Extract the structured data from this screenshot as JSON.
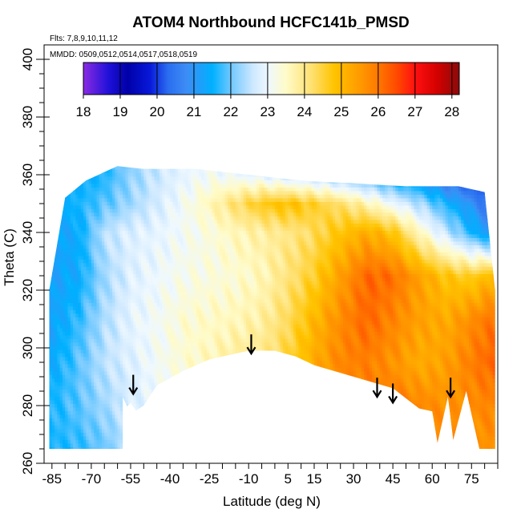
{
  "chart_data": {
    "type": "heatmap",
    "title": "ATOM4 Northbound HCFC141b_PMSD",
    "subtitle_flights": "Flts: 7,8,9,10,11,12",
    "subtitle_dates": "MMDD: 0509,0512,0514,0517,0518,0519",
    "xlabel": "Latitude (deg N)",
    "ylabel": "Theta (C)",
    "xlim": [
      -88,
      85
    ],
    "ylim": [
      260,
      405
    ],
    "x_ticks": [
      -85,
      -70,
      -55,
      -40,
      -25,
      -10,
      5,
      15,
      30,
      45,
      60,
      75
    ],
    "y_ticks": [
      260,
      280,
      300,
      320,
      340,
      360,
      380,
      400
    ],
    "colorbar": {
      "range": [
        18,
        28.2
      ],
      "ticks": [
        18,
        19,
        20,
        21,
        22,
        23,
        24,
        25,
        26,
        27,
        28
      ],
      "stops": [
        {
          "v": 18.0,
          "c": "#8a2be2"
        },
        {
          "v": 18.7,
          "c": "#1e10d8"
        },
        {
          "v": 19.2,
          "c": "#0000a8"
        },
        {
          "v": 19.8,
          "c": "#0818d8"
        },
        {
          "v": 20.3,
          "c": "#2a6ef0"
        },
        {
          "v": 20.8,
          "c": "#3d8df5"
        },
        {
          "v": 21.5,
          "c": "#00b0ff"
        },
        {
          "v": 22.0,
          "c": "#70c8ff"
        },
        {
          "v": 22.6,
          "c": "#cde8ff"
        },
        {
          "v": 23.0,
          "c": "#eef8ff"
        },
        {
          "v": 23.5,
          "c": "#fffbc8"
        },
        {
          "v": 24.2,
          "c": "#ffe070"
        },
        {
          "v": 24.8,
          "c": "#ffc400"
        },
        {
          "v": 25.5,
          "c": "#ff9a00"
        },
        {
          "v": 26.0,
          "c": "#ff7800"
        },
        {
          "v": 26.5,
          "c": "#ff4a00"
        },
        {
          "v": 27.0,
          "c": "#ff1010"
        },
        {
          "v": 27.6,
          "c": "#d40000"
        },
        {
          "v": 28.2,
          "c": "#8a0a0a"
        }
      ]
    },
    "field_anchors_lat": [
      -85,
      -75,
      -65,
      -55,
      -45,
      -35,
      -25,
      -15,
      -5,
      5,
      15,
      25,
      35,
      45,
      55,
      65,
      75,
      82
    ],
    "field_anchors_theta": [
      265,
      280,
      295,
      310,
      325,
      340,
      350,
      360
    ],
    "field_values": [
      [
        21.6,
        21.7,
        22.0,
        22.5,
        22.8,
        23.0,
        23.3,
        23.6,
        23.8,
        24.2,
        24.8,
        25.3,
        25.6,
        25.8,
        25.8,
        25.7,
        25.6,
        25.6
      ],
      [
        21.6,
        21.9,
        22.3,
        22.7,
        23.0,
        23.2,
        23.5,
        23.8,
        24.0,
        24.4,
        25.0,
        25.6,
        25.9,
        26.0,
        25.8,
        25.6,
        25.7,
        25.8
      ],
      [
        21.4,
        21.9,
        22.5,
        22.8,
        23.1,
        23.4,
        23.6,
        23.9,
        24.0,
        24.5,
        25.2,
        25.8,
        25.9,
        25.6,
        25.2,
        25.4,
        25.9,
        26.2
      ],
      [
        21.2,
        21.7,
        22.4,
        22.9,
        23.1,
        23.4,
        23.5,
        23.6,
        23.8,
        24.3,
        25.0,
        25.7,
        26.2,
        25.8,
        25.4,
        25.2,
        25.7,
        26.0
      ],
      [
        21.2,
        21.4,
        22.3,
        22.8,
        23.0,
        23.2,
        23.3,
        23.4,
        23.6,
        24.1,
        24.6,
        25.4,
        26.2,
        26.1,
        25.4,
        24.8,
        24.6,
        25.0
      ],
      [
        21.2,
        21.4,
        22.5,
        22.8,
        22.9,
        23.1,
        23.3,
        23.6,
        23.8,
        24.0,
        24.3,
        24.8,
        25.2,
        24.8,
        23.6,
        22.6,
        21.6,
        21.0
      ],
      [
        21.4,
        21.6,
        21.9,
        22.3,
        22.7,
        23.1,
        23.6,
        24.2,
        24.7,
        24.9,
        24.6,
        24.2,
        23.7,
        23.0,
        22.4,
        21.6,
        20.9,
        20.3
      ],
      [
        21.3,
        21.4,
        21.6,
        22.2,
        22.6,
        22.9,
        23.1,
        23.0,
        22.8,
        22.5,
        22.3,
        22.0,
        21.6,
        21.2,
        20.8,
        20.2,
        19.7,
        19.6
      ]
    ],
    "top_boundary": [
      [
        -86,
        320
      ],
      [
        -80,
        352
      ],
      [
        -72,
        358
      ],
      [
        -60,
        363
      ],
      [
        -50,
        362
      ],
      [
        -30,
        362
      ],
      [
        -10,
        360
      ],
      [
        10,
        358
      ],
      [
        30,
        357
      ],
      [
        50,
        356
      ],
      [
        70,
        356
      ],
      [
        80,
        354
      ],
      [
        84,
        320
      ]
    ],
    "bottom_boundary": [
      [
        84,
        265
      ],
      [
        78,
        265
      ],
      [
        73,
        285
      ],
      [
        68,
        268
      ],
      [
        66,
        283
      ],
      [
        65,
        272
      ],
      [
        62,
        267
      ],
      [
        60,
        278
      ],
      [
        55,
        279
      ],
      [
        45,
        286
      ],
      [
        40,
        286
      ],
      [
        30,
        290
      ],
      [
        20,
        292
      ],
      [
        15,
        294
      ],
      [
        8,
        297
      ],
      [
        0,
        299
      ],
      [
        -10,
        299
      ],
      [
        -25,
        296
      ],
      [
        -35,
        292
      ],
      [
        -45,
        287
      ],
      [
        -50,
        280
      ],
      [
        -52,
        277
      ],
      [
        -55,
        281
      ],
      [
        -57,
        279
      ],
      [
        -58,
        265
      ],
      [
        -86,
        265
      ]
    ],
    "missing_region": [
      [
        -10,
        299
      ],
      [
        -20,
        297
      ],
      [
        -32,
        293
      ],
      [
        -42,
        288
      ],
      [
        -50,
        280
      ],
      [
        -55,
        277
      ],
      [
        -58,
        283
      ],
      [
        -58,
        265
      ],
      [
        84,
        265
      ],
      [
        84,
        264
      ],
      [
        78,
        264
      ],
      [
        73,
        285
      ],
      [
        68,
        268
      ],
      [
        66,
        283
      ],
      [
        62,
        267
      ],
      [
        60,
        278
      ],
      [
        55,
        279
      ],
      [
        45,
        286
      ],
      [
        30,
        290
      ],
      [
        15,
        294
      ],
      [
        0,
        299
      ]
    ],
    "arrows_lat": [
      -54,
      -9,
      39,
      45,
      67
    ],
    "arrows_theta_tip": [
      284,
      298,
      283,
      281,
      283
    ]
  }
}
